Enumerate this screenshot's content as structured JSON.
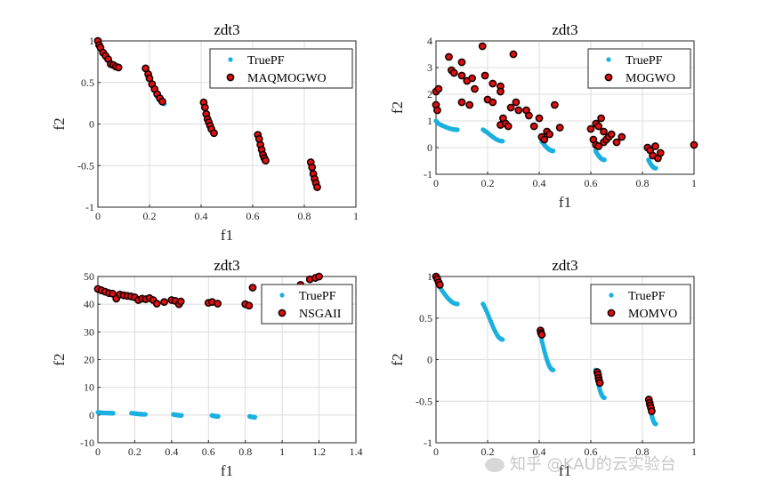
{
  "chart_data": [
    {
      "type": "scatter",
      "title": "zdt3",
      "xlabel": "f1",
      "ylabel": "f2",
      "xlim": [
        0,
        1
      ],
      "ylim": [
        -1,
        1
      ],
      "xticks": [
        "0",
        "0.2",
        "0.4",
        "0.6",
        "0.8",
        "1"
      ],
      "yticks": [
        "-1",
        "-0.5",
        "0",
        "0.5",
        "1"
      ],
      "grid": true,
      "legend_position": "top-right",
      "series": [
        {
          "name": "TruePF",
          "color": "#1ab0e0",
          "marker": "dot",
          "source": "truepf"
        },
        {
          "name": "MAQMOGWO",
          "color": "#e01010",
          "marker": "circle",
          "points": [
            [
              0.0,
              1.0
            ],
            [
              0.005,
              0.95
            ],
            [
              0.01,
              0.92
            ],
            [
              0.02,
              0.86
            ],
            [
              0.03,
              0.82
            ],
            [
              0.04,
              0.78
            ],
            [
              0.05,
              0.72
            ],
            [
              0.06,
              0.71
            ],
            [
              0.07,
              0.69
            ],
            [
              0.08,
              0.68
            ],
            [
              0.185,
              0.67
            ],
            [
              0.195,
              0.6
            ],
            [
              0.2,
              0.55
            ],
            [
              0.21,
              0.48
            ],
            [
              0.22,
              0.42
            ],
            [
              0.23,
              0.36
            ],
            [
              0.24,
              0.31
            ],
            [
              0.25,
              0.27
            ],
            [
              0.41,
              0.26
            ],
            [
              0.415,
              0.2
            ],
            [
              0.42,
              0.12
            ],
            [
              0.425,
              0.06
            ],
            [
              0.43,
              0.02
            ],
            [
              0.435,
              -0.02
            ],
            [
              0.44,
              -0.06
            ],
            [
              0.45,
              -0.11
            ],
            [
              0.62,
              -0.13
            ],
            [
              0.625,
              -0.18
            ],
            [
              0.63,
              -0.25
            ],
            [
              0.635,
              -0.31
            ],
            [
              0.64,
              -0.37
            ],
            [
              0.645,
              -0.41
            ],
            [
              0.65,
              -0.44
            ],
            [
              0.825,
              -0.46
            ],
            [
              0.83,
              -0.52
            ],
            [
              0.835,
              -0.6
            ],
            [
              0.84,
              -0.66
            ],
            [
              0.845,
              -0.71
            ],
            [
              0.85,
              -0.76
            ]
          ]
        }
      ]
    },
    {
      "type": "scatter",
      "title": "zdt3",
      "xlabel": "f1",
      "ylabel": "f2",
      "xlim": [
        0,
        1
      ],
      "ylim": [
        -1,
        4
      ],
      "xticks": [
        "0",
        "0.2",
        "0.4",
        "0.6",
        "0.8",
        "1"
      ],
      "yticks": [
        "-1",
        "0",
        "1",
        "2",
        "3",
        "4"
      ],
      "grid": true,
      "legend_position": "top-right",
      "series": [
        {
          "name": "TruePF",
          "color": "#1ab0e0",
          "marker": "dot",
          "source": "truepf"
        },
        {
          "name": "MOGWO",
          "color": "#e01010",
          "marker": "circle",
          "points": [
            [
              0.0,
              2.1
            ],
            [
              0.0,
              1.6
            ],
            [
              0.005,
              1.4
            ],
            [
              0.01,
              2.2
            ],
            [
              0.05,
              3.4
            ],
            [
              0.06,
              2.9
            ],
            [
              0.07,
              2.8
            ],
            [
              0.1,
              2.7
            ],
            [
              0.1,
              3.2
            ],
            [
              0.12,
              2.5
            ],
            [
              0.1,
              1.7
            ],
            [
              0.13,
              1.6
            ],
            [
              0.14,
              2.6
            ],
            [
              0.15,
              2.2
            ],
            [
              0.18,
              3.8
            ],
            [
              0.19,
              2.7
            ],
            [
              0.2,
              1.8
            ],
            [
              0.22,
              2.4
            ],
            [
              0.22,
              1.7
            ],
            [
              0.25,
              2.3
            ],
            [
              0.25,
              2.1
            ],
            [
              0.26,
              1.1
            ],
            [
              0.25,
              0.85
            ],
            [
              0.27,
              0.9
            ],
            [
              0.28,
              0.8
            ],
            [
              0.29,
              1.5
            ],
            [
              0.3,
              3.5
            ],
            [
              0.31,
              1.7
            ],
            [
              0.32,
              1.4
            ],
            [
              0.35,
              1.4
            ],
            [
              0.36,
              1.2
            ],
            [
              0.38,
              0.8
            ],
            [
              0.4,
              1.1
            ],
            [
              0.41,
              0.4
            ],
            [
              0.42,
              0.3
            ],
            [
              0.43,
              0.6
            ],
            [
              0.44,
              0.5
            ],
            [
              0.46,
              1.6
            ],
            [
              0.48,
              0.75
            ],
            [
              0.6,
              0.7
            ],
            [
              0.61,
              0.3
            ],
            [
              0.62,
              0.9
            ],
            [
              0.63,
              0.8
            ],
            [
              0.62,
              0.1
            ],
            [
              0.63,
              0.05
            ],
            [
              0.64,
              1.1
            ],
            [
              0.65,
              0.6
            ],
            [
              0.65,
              0.2
            ],
            [
              0.66,
              0.3
            ],
            [
              0.67,
              0.4
            ],
            [
              0.68,
              0.5
            ],
            [
              0.7,
              0.2
            ],
            [
              0.72,
              0.4
            ],
            [
              0.82,
              0.0
            ],
            [
              0.83,
              -0.1
            ],
            [
              0.84,
              -0.3
            ],
            [
              0.85,
              0.05
            ],
            [
              0.86,
              -0.4
            ],
            [
              1.0,
              0.1
            ],
            [
              0.87,
              -0.2
            ]
          ]
        }
      ]
    },
    {
      "type": "scatter",
      "title": "zdt3",
      "xlabel": "f1",
      "ylabel": "f2",
      "xlim": [
        0,
        1.4
      ],
      "ylim": [
        -10,
        50
      ],
      "xticks": [
        "0",
        "0.2",
        "0.4",
        "0.6",
        "0.8",
        "1",
        "1.2",
        "1.4"
      ],
      "yticks": [
        "-10",
        "0",
        "10",
        "20",
        "30",
        "40",
        "50"
      ],
      "grid": true,
      "legend_position": "top-right",
      "series": [
        {
          "name": "TruePF",
          "color": "#1ab0e0",
          "marker": "dot",
          "source": "truepf"
        },
        {
          "name": "NSGAII",
          "color": "#e01010",
          "marker": "circle",
          "points": [
            [
              0.0,
              45.5
            ],
            [
              0.02,
              45.0
            ],
            [
              0.04,
              44.5
            ],
            [
              0.06,
              44.0
            ],
            [
              0.08,
              43.8
            ],
            [
              0.1,
              42.0
            ],
            [
              0.12,
              43.5
            ],
            [
              0.14,
              43.2
            ],
            [
              0.16,
              43.0
            ],
            [
              0.18,
              42.8
            ],
            [
              0.2,
              42.5
            ],
            [
              0.22,
              41.5
            ],
            [
              0.24,
              42.0
            ],
            [
              0.26,
              41.8
            ],
            [
              0.28,
              42.2
            ],
            [
              0.3,
              41.5
            ],
            [
              0.32,
              40.2
            ],
            [
              0.36,
              40.8
            ],
            [
              0.4,
              41.5
            ],
            [
              0.42,
              41.2
            ],
            [
              0.44,
              40.0
            ],
            [
              0.45,
              41.0
            ],
            [
              0.6,
              40.5
            ],
            [
              0.62,
              40.8
            ],
            [
              0.65,
              40.2
            ],
            [
              0.8,
              40.0
            ],
            [
              0.82,
              39.5
            ],
            [
              0.84,
              46.0
            ],
            [
              1.1,
              47.0
            ],
            [
              1.15,
              49.0
            ],
            [
              1.18,
              49.5
            ],
            [
              1.2,
              50.0
            ]
          ]
        }
      ]
    },
    {
      "type": "scatter",
      "title": "zdt3",
      "xlabel": "f1",
      "ylabel": "f2",
      "xlim": [
        0,
        1
      ],
      "ylim": [
        -1,
        1
      ],
      "xticks": [
        "0",
        "0.2",
        "0.4",
        "0.6",
        "0.8",
        "1"
      ],
      "yticks": [
        "-1",
        "-0.5",
        "0",
        "0.5",
        "1"
      ],
      "grid": true,
      "legend_position": "top-right",
      "series": [
        {
          "name": "TruePF",
          "color": "#1ab0e0",
          "marker": "dot",
          "source": "truepf"
        },
        {
          "name": "MOMVO",
          "color": "#e01010",
          "marker": "circle",
          "points": [
            [
              0.0,
              1.02
            ],
            [
              0.005,
              0.97
            ],
            [
              0.01,
              0.93
            ],
            [
              0.015,
              0.9
            ],
            [
              0.405,
              0.35
            ],
            [
              0.407,
              0.32
            ],
            [
              0.41,
              0.3
            ],
            [
              0.625,
              -0.15
            ],
            [
              0.628,
              -0.18
            ],
            [
              0.63,
              -0.22
            ],
            [
              0.632,
              -0.25
            ],
            [
              0.635,
              -0.28
            ],
            [
              0.825,
              -0.48
            ],
            [
              0.828,
              -0.52
            ],
            [
              0.83,
              -0.55
            ],
            [
              0.833,
              -0.58
            ],
            [
              0.836,
              -0.62
            ]
          ]
        }
      ]
    }
  ],
  "watermark": {
    "text": "知乎 @KAU的云实验台",
    "icon": "wechat-icon"
  }
}
